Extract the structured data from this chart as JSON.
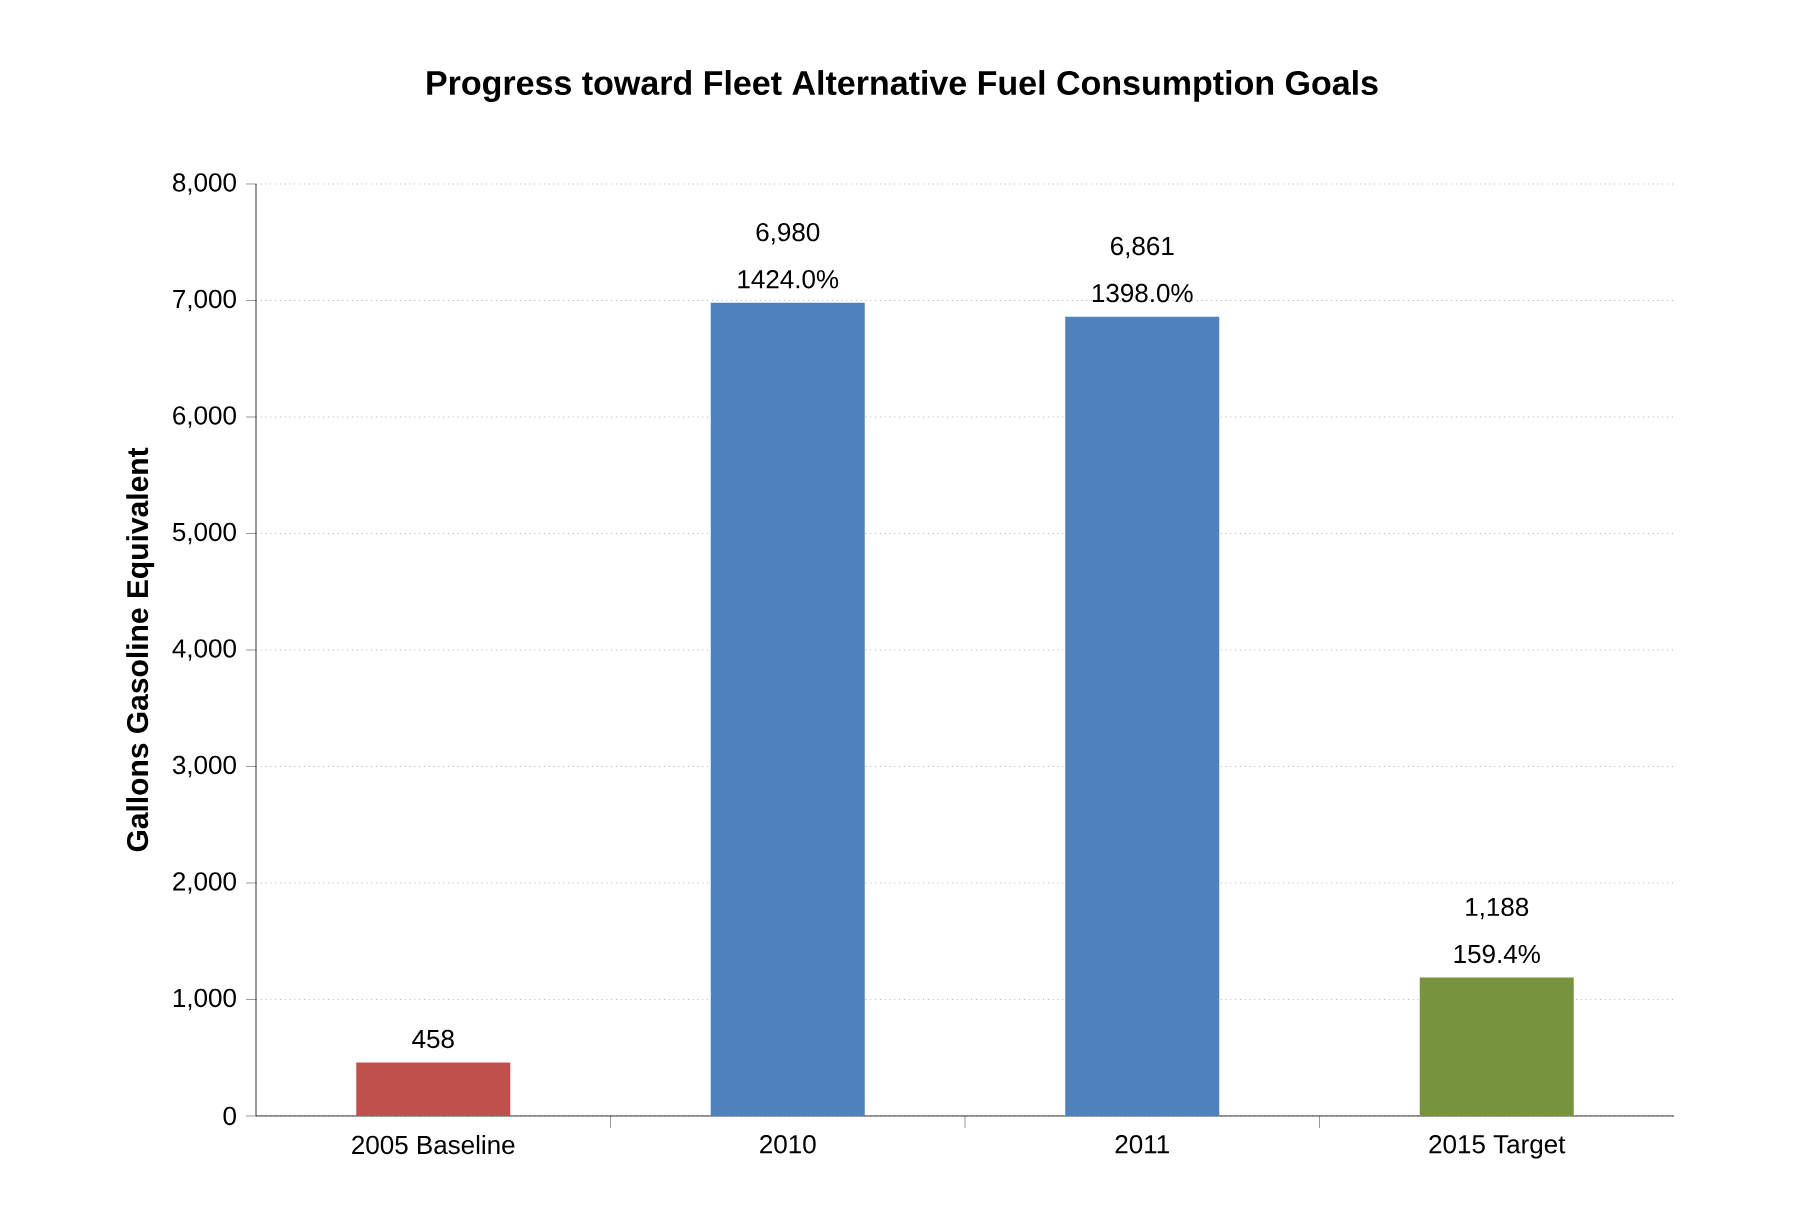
{
  "chart_data": {
    "type": "bar",
    "title": "Progress toward Fleet Alternative Fuel Consumption Goals",
    "ylabel": "Gallons Gasoline Equivalent",
    "categories": [
      "2005 Baseline",
      "2010",
      "2011",
      "2015 Target"
    ],
    "values": [
      458,
      6980,
      6861,
      1188
    ],
    "colors": [
      "#c0504d",
      "#4f81bd",
      "#4f81bd",
      "#77933c"
    ],
    "value_labels": [
      "458",
      "6,980",
      "6,861",
      "1,188"
    ],
    "annotations": [
      {
        "text": "1424.0%",
        "x": "2010",
        "y": 6980
      },
      {
        "text": "1398.0%",
        "x": "2011",
        "y": 6861
      },
      {
        "text": "159.4%",
        "x": "2015 Target",
        "y": 1188
      }
    ],
    "ylim": [
      0,
      8000
    ],
    "yticks": [
      0,
      {
        "value": 1000,
        "label": "1,000"
      },
      {
        "value": 2000,
        "label": "2,000"
      },
      {
        "value": 3000,
        "label": "3,000"
      },
      {
        "value": 4000,
        "label": "4,000"
      },
      {
        "value": 5000,
        "label": "5,000"
      },
      {
        "value": 6000,
        "label": "6,000"
      },
      {
        "value": 7000,
        "label": "7,000"
      },
      {
        "value": 8000,
        "label": "8,000"
      }
    ],
    "grid": "y"
  }
}
